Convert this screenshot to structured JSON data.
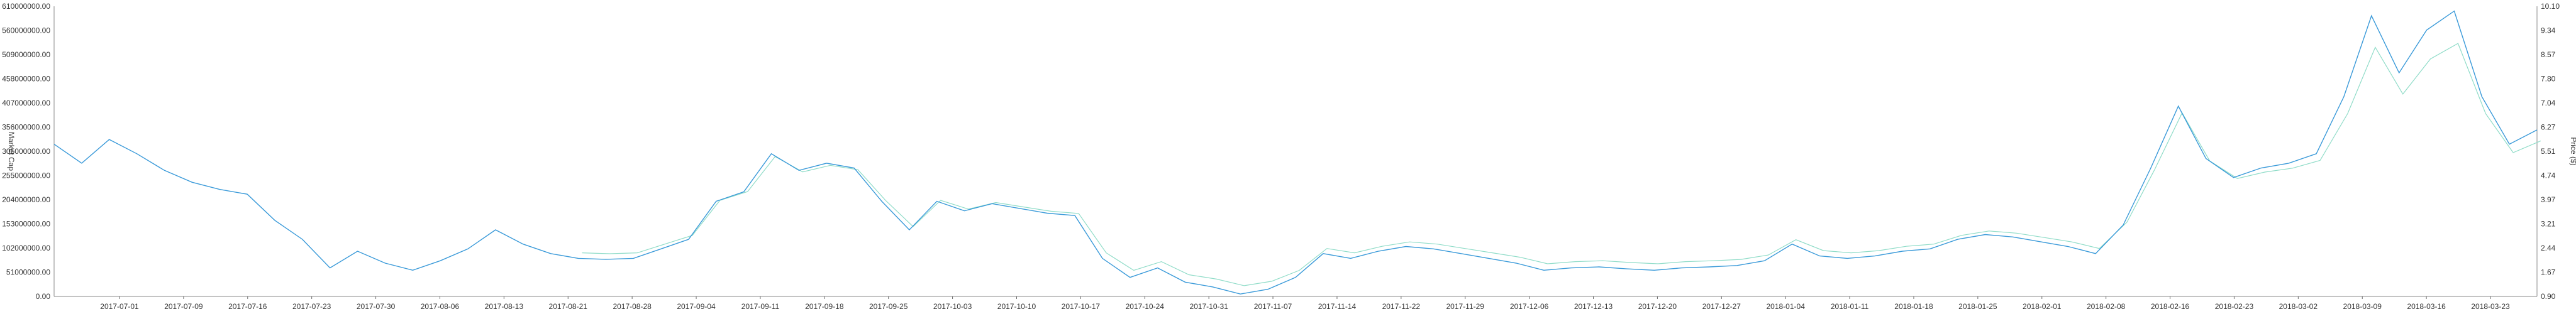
{
  "chart_data": {
    "type": "line",
    "y_left": {
      "label": "Market Cap",
      "ticks": [
        "0.00",
        "51000000.00",
        "102000000.00",
        "153000000.00",
        "204000000.00",
        "255000000.00",
        "305000000.00",
        "356000000.00",
        "407000000.00",
        "458000000.00",
        "509000000.00",
        "560000000.00",
        "610000000.00"
      ],
      "range": [
        0,
        610000000
      ]
    },
    "y_right": {
      "label": "Price ($)",
      "ticks": [
        "0.90",
        "1.67",
        "2.44",
        "3.21",
        "3.97",
        "4.74",
        "5.51",
        "6.27",
        "7.04",
        "7.80",
        "8.57",
        "9.34",
        "10.10"
      ],
      "range": [
        0.9,
        10.1
      ]
    },
    "x_ticks": [
      "2017-07-01",
      "2017-07-09",
      "2017-07-16",
      "2017-07-23",
      "2017-07-30",
      "2017-08-06",
      "2017-08-13",
      "2017-08-21",
      "2017-08-28",
      "2017-09-04",
      "2017-09-11",
      "2017-09-18",
      "2017-09-25",
      "2017-10-03",
      "2017-10-10",
      "2017-10-17",
      "2017-10-24",
      "2017-10-31",
      "2017-11-07",
      "2017-11-14",
      "2017-11-22",
      "2017-11-29",
      "2017-12-06",
      "2017-12-13",
      "2017-12-20",
      "2017-12-27",
      "2018-01-04",
      "2018-01-11",
      "2018-01-18",
      "2018-01-25",
      "2018-02-01",
      "2018-02-08",
      "2018-02-16",
      "2018-02-23",
      "2018-03-02",
      "2018-03-09",
      "2018-03-16",
      "2018-03-23"
    ],
    "grid": false,
    "colors": {
      "market_cap": "#3a9ad9",
      "price": "#8fdcc8"
    },
    "series": [
      {
        "axis": "left",
        "color": "#3a9ad9",
        "x": [
          0,
          3,
          6,
          9,
          12,
          15,
          18,
          21,
          24,
          27,
          30,
          33,
          36,
          39,
          42,
          45,
          48,
          51,
          54,
          57,
          60,
          63,
          66,
          69,
          72,
          75,
          78,
          81,
          84,
          87,
          90,
          93,
          96,
          99,
          102,
          105,
          108,
          111,
          114,
          117,
          120,
          123,
          126,
          129,
          132,
          135,
          138,
          141,
          144,
          147,
          150,
          153,
          156,
          159,
          162,
          165,
          168,
          171,
          174,
          177,
          180,
          183,
          186,
          189,
          192,
          195,
          198,
          201,
          204,
          207,
          210,
          213,
          216,
          219,
          222,
          225,
          228,
          231,
          234,
          237,
          240,
          243,
          246,
          249,
          252,
          255,
          258,
          261,
          264,
          267,
          270
        ],
        "y": [
          320000000,
          280000000,
          330000000,
          300000000,
          265000000,
          240000000,
          225000000,
          215000000,
          160000000,
          120000000,
          60000000,
          95000000,
          70000000,
          55000000,
          75000000,
          100000000,
          140000000,
          110000000,
          90000000,
          80000000,
          78000000,
          80000000,
          100000000,
          120000000,
          200000000,
          220000000,
          300000000,
          265000000,
          280000000,
          270000000,
          200000000,
          140000000,
          200000000,
          180000000,
          195000000,
          185000000,
          175000000,
          170000000,
          80000000,
          40000000,
          60000000,
          30000000,
          20000000,
          5000000,
          15000000,
          40000000,
          90000000,
          80000000,
          95000000,
          105000000,
          100000000,
          90000000,
          80000000,
          70000000,
          55000000,
          60000000,
          62000000,
          58000000,
          55000000,
          60000000,
          62000000,
          65000000,
          75000000,
          110000000,
          85000000,
          80000000,
          85000000,
          95000000,
          100000000,
          120000000,
          130000000,
          125000000,
          115000000,
          105000000,
          90000000,
          150000000,
          270000000,
          400000000,
          290000000,
          250000000,
          270000000,
          280000000,
          300000000,
          420000000,
          590000000,
          470000000,
          560000000,
          600000000,
          420000000,
          320000000,
          350000000
        ],
        "note": ""
      }
    ]
  }
}
